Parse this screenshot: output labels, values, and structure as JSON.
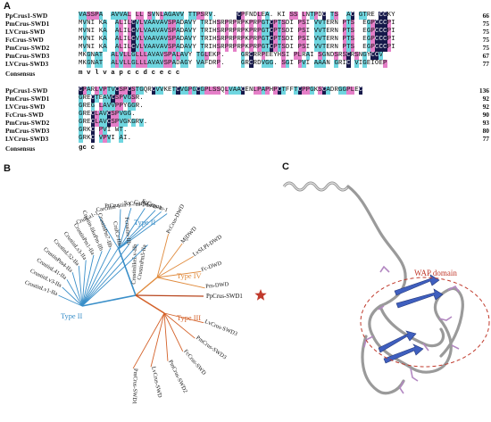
{
  "panel_labels": {
    "a": "A",
    "b": "B",
    "c": "C"
  },
  "colors": {
    "identical": "#16184a",
    "pink": "#e57fc8",
    "cyan": "#6fd6e0",
    "type_ii": "#3a8fc9",
    "type_iii": "#d4622a",
    "type_iv": "#e08a3c",
    "wap_circle": "#c0392b",
    "helix": "#3f5fbf",
    "star": "#c0392b"
  },
  "alignment": {
    "block1": [
      {
        "name": "PpCrus1-SWD",
        "seq": "VASSPA  AVVAL LL SVNLAGAVV TTPSRV.     CPFNDLEA. KI SS LNTPDC TS  AC GTRE CCKY",
        "num": "66"
      },
      {
        "name": "PmCrus-SWD1",
        "seq": "MVNI KA  ALILCVLVAAVAVSPADAVY TRIHSRPRPRPKPRPGTCPTSDI PSI VVTERN PTS  EGPCCCPI",
        "num": "75"
      },
      {
        "name": "LVCrus-SWD",
        "seq": "MVNI KA  ALILCVLVAAVAVSPADAVY TRIHSRPRPRPKPRPGTCPTSDI PSI VVTERN PTS  EGPCCCPI",
        "num": "75"
      },
      {
        "name": "FcCrus-SWD",
        "seq": "MVNI KA  ALILCVLVAAVAVSPADAVY TRIHSRPRPRPKPRPGTCPTSDI PSI VVTERN PTS  EGPCCCPI",
        "num": "75"
      },
      {
        "name": "PmCrus-SWD2",
        "seq": "MVNI KA  ALILCVLVAAVAVSPADAVY TRIHSRPRPRPKPRPGTCPTSDI PSI VVTERN PTS  EGPCCCPI",
        "num": "75"
      },
      {
        "name": "PmCrus-SWD3",
        "seq": "MKGNAT  ALVLLGLLLAVAVSPALAVY TGLEKP.    GRCRRPEEYHSI PLRAI SGNDSRSCRSNGYCCV",
        "num": "67"
      },
      {
        "name": "LVCrus-SWD3",
        "seq": "MKGNAT  ALVLLGLLLAVAVSPADAGY VAFDRP.    GRCRDVGG. SGI PVI AAAN GRIC VIGEIOEP",
        "num": "77"
      }
    ],
    "consensus1": {
      "label": "Consensus",
      "seq": "m    v    l v  a       p                      c     c    d  c   e     c c"
    },
    "block2": [
      {
        "name": "PpCrus1-SWD",
        "seq": "CPARLVPTVCSPCSTGQRCVVKETCVGPGCGPLSSQLVAACENLPAPHPCTFFTCPPGKSCADRGGPLEC",
        "num": "136"
      },
      {
        "name": "PmCrus-SWD1",
        "seq": "GRECTEAVCSPVGSR.",
        "num": "92"
      },
      {
        "name": "LVCrus-SWD",
        "seq": "GREG LAVVPPYGGR.",
        "num": "92"
      },
      {
        "name": "FcCrus-SWD",
        "seq": "GRECLAVCSPVGG.",
        "num": "90"
      },
      {
        "name": "PmCrus-SWD2",
        "seq": "GRECLAVCSPVGKGRV.",
        "num": "93"
      },
      {
        "name": "PmCrus-SWD3",
        "seq": "GRKC PVI WT.",
        "num": "80"
      },
      {
        "name": "LVCrus-SWD3",
        "seq": "GRKC VPVI AI.",
        "num": "77"
      }
    ],
    "consensus2": {
      "label": "Consensus",
      "seq": "gc   c"
    }
  },
  "tree": {
    "type_labels": {
      "ii_top": "Type II",
      "ii_left": "Type II",
      "iii": "Type III",
      "iv": "Type IV"
    },
    "leaves_type_ii_top": [
      "CrulLa1-1",
      "Carcinin-1",
      "PtCrustin-1",
      "ScCrus-1",
      "GaCrus-1",
      "SsCrus-1",
      "ScCrustin-1"
    ],
    "leaves_type_ii_left": [
      "CrustinLv1-IIa",
      "CrustinLv3-IIa",
      "CrustinL41-IIa",
      "CrustinPm4-IIa",
      "CrustinL52-IIa",
      "CrustinLs3-IIa",
      "CrustinPm1-IIa",
      "Crustin-likePm-IIb",
      "CrustinPm7-IIb",
      "CrulCr-IIb",
      "Fcrustin-IIb",
      "CrustinlikeLv-IIb",
      "CrustinPm5-IIa"
    ],
    "leaves_type_iv": [
      "PcCrus-DWD",
      "MjDWD",
      "LvSLPI-DWD",
      "Fc-DWD",
      "Pm-DWD"
    ],
    "highlight_leaf": "PpCrus-SWD1",
    "leaves_type_iii": [
      "LvCrus-SWD3",
      "PmCrus-SWD3",
      "FcCrus-SWD",
      "PmCrus-SWD2",
      "LvCrus-SWD",
      "PmCrus-SWD1"
    ]
  },
  "structure": {
    "domain_label": "WAP domain"
  }
}
